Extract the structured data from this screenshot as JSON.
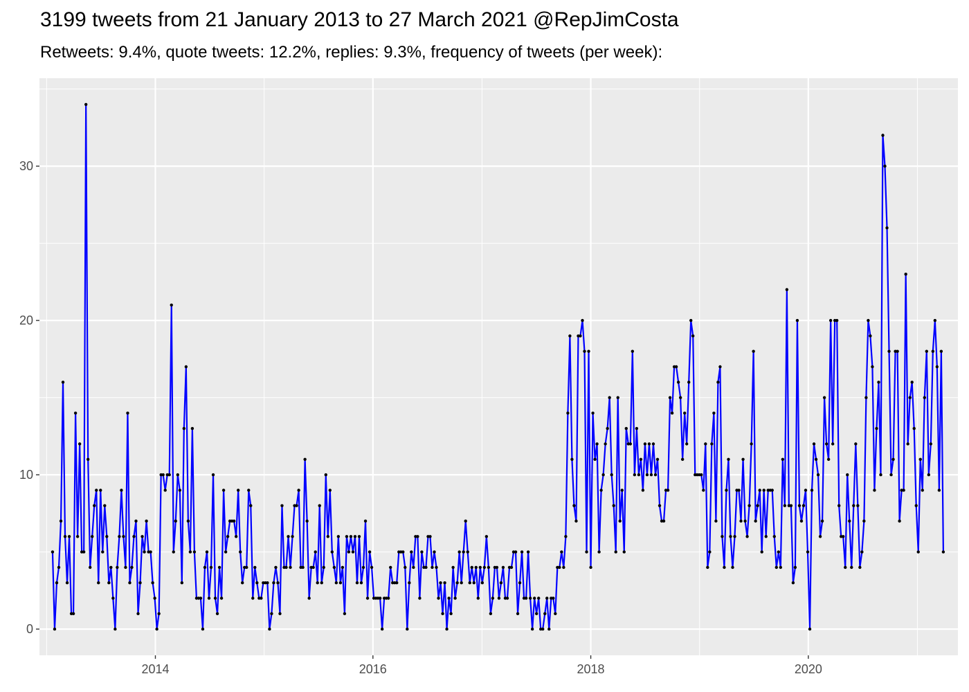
{
  "title": "3199 tweets from 21 January 2013 to 27 March 2021 @RepJimCosta",
  "subtitle": "Retweets: 9.4%, quote tweets: 12.2%, replies: 9.3%, frequency of tweets (per week):",
  "colors": {
    "panel_background": "#ebebeb",
    "grid": "#ffffff",
    "line": "#0000ff",
    "points": "#000000"
  },
  "chart_data": {
    "type": "line",
    "title": "3199 tweets from 21 January 2013 to 27 March 2021 @RepJimCosta",
    "subtitle": "Retweets: 9.4%, quote tweets: 12.2%, replies: 9.3%, frequency of tweets (per week):",
    "xlabel": "",
    "ylabel": "",
    "x_start": "2013-01-21",
    "x_interval": "weekly",
    "x_ticks": [
      "2014",
      "2016",
      "2018",
      "2020"
    ],
    "y_ticks": [
      0,
      10,
      20,
      30
    ],
    "ylim": [
      -1.7,
      35.7
    ],
    "grid": true,
    "legend": "none",
    "series": [
      {
        "values": [
          5,
          0,
          3,
          4,
          7,
          16,
          6,
          3,
          6,
          1,
          1,
          14,
          6,
          12,
          5,
          5,
          34,
          11,
          4,
          6,
          8,
          9,
          3,
          9,
          5,
          8,
          6,
          3,
          4,
          2,
          0,
          4,
          6,
          9,
          6,
          4,
          14,
          3,
          4,
          6,
          7,
          1,
          3,
          6,
          5,
          7,
          5,
          5,
          3,
          2,
          0,
          1,
          10,
          10,
          9,
          10,
          10,
          21,
          5,
          7,
          10,
          9,
          3,
          13,
          17,
          7,
          5,
          13,
          5,
          2,
          2,
          2,
          0,
          4,
          5,
          2,
          4,
          10,
          2,
          1,
          4,
          2,
          9,
          5,
          6,
          7,
          7,
          7,
          6,
          9,
          5,
          3,
          4,
          4,
          9,
          8,
          2,
          4,
          3,
          2,
          2,
          3,
          3,
          3,
          0,
          1,
          3,
          4,
          3,
          1,
          8,
          4,
          4,
          6,
          4,
          6,
          8,
          8,
          9,
          4,
          4,
          11,
          7,
          2,
          4,
          4,
          5,
          3,
          8,
          3,
          4,
          10,
          6,
          9,
          5,
          4,
          3,
          6,
          3,
          4,
          1,
          6,
          5,
          6,
          5,
          6,
          3,
          6,
          3,
          4,
          7,
          2,
          5,
          4,
          2,
          2,
          2,
          2,
          0,
          2,
          2,
          2,
          4,
          3,
          3,
          3,
          5,
          5,
          5,
          4,
          0,
          3,
          5,
          4,
          6,
          6,
          2,
          5,
          4,
          4,
          6,
          6,
          4,
          5,
          4,
          2,
          3,
          1,
          3,
          0,
          2,
          1,
          4,
          2,
          3,
          5,
          3,
          5,
          7,
          5,
          3,
          4,
          3,
          4,
          2,
          4,
          3,
          4,
          6,
          4,
          1,
          2,
          4,
          4,
          2,
          3,
          4,
          2,
          2,
          4,
          4,
          5,
          5,
          1,
          3,
          5,
          2,
          2,
          5,
          2,
          0,
          2,
          1,
          2,
          0,
          0,
          1,
          2,
          0,
          2,
          2,
          1,
          4,
          4,
          5,
          4,
          6,
          14,
          19,
          11,
          8,
          7,
          19,
          19,
          20,
          18,
          5,
          18,
          4,
          14,
          11,
          12,
          5,
          9,
          10,
          12,
          13,
          15,
          10,
          8,
          5,
          15,
          7,
          9,
          5,
          13,
          12,
          12,
          18,
          10,
          13,
          10,
          11,
          9,
          12,
          10,
          12,
          10,
          12,
          10,
          11,
          8,
          7,
          7,
          9,
          9,
          15,
          14,
          17,
          17,
          16,
          15,
          11,
          14,
          12,
          16,
          20,
          19,
          10,
          10,
          10,
          10,
          9,
          12,
          4,
          5,
          12,
          14,
          7,
          16,
          17,
          6,
          4,
          9,
          11,
          6,
          4,
          6,
          9,
          9,
          7,
          11,
          7,
          6,
          8,
          12,
          18,
          7,
          8,
          9,
          5,
          9,
          6,
          9,
          9,
          9,
          6,
          4,
          5,
          4,
          11,
          8,
          22,
          8,
          8,
          3,
          4,
          20,
          8,
          7,
          8,
          9,
          5,
          0,
          9,
          12,
          11,
          10,
          6,
          7,
          15,
          12,
          11,
          20,
          12,
          20,
          20,
          8,
          6,
          6,
          4,
          10,
          7,
          4,
          8,
          12,
          8,
          4,
          5,
          7,
          15,
          20,
          19,
          17,
          9,
          13,
          16,
          10,
          32,
          30,
          26,
          18,
          10,
          11,
          18,
          18,
          7,
          9,
          9,
          23,
          12,
          15,
          16,
          13,
          8,
          5,
          11,
          9,
          15,
          18,
          10,
          12,
          18,
          20,
          17,
          9,
          18,
          5
        ]
      }
    ]
  }
}
